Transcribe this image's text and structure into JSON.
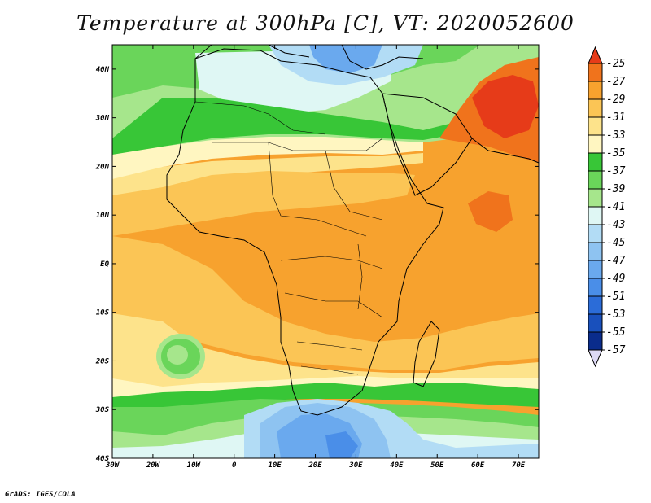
{
  "title": "Temperature at 300hPa [C], VT: 2020052600",
  "credit": "GrADS: IGES/COLA",
  "map": {
    "lon_range": [
      -30,
      75
    ],
    "lat_range": [
      -40,
      45
    ],
    "x_ticks": [
      "30W",
      "20W",
      "10W",
      "0",
      "10E",
      "20E",
      "30E",
      "40E",
      "50E",
      "60E",
      "70E"
    ],
    "x_tick_values": [
      -30,
      -20,
      -10,
      0,
      10,
      20,
      30,
      40,
      50,
      60,
      70
    ],
    "y_ticks": [
      "40N",
      "30N",
      "20N",
      "10N",
      "EQ",
      "10S",
      "20S",
      "30S",
      "40S"
    ],
    "y_tick_values": [
      40,
      30,
      20,
      10,
      0,
      -10,
      -20,
      -30,
      -40
    ]
  },
  "colorbar": {
    "labels": [
      "-25",
      "-27",
      "-29",
      "-31",
      "-33",
      "-35",
      "-37",
      "-39",
      "-41",
      "-43",
      "-45",
      "-47",
      "-49",
      "-51",
      "-53",
      "-55",
      "-57"
    ],
    "colors": [
      "#e63b19",
      "#f0731c",
      "#f7a22e",
      "#fbc555",
      "#fde38b",
      "#fff6c1",
      "#38c637",
      "#6ad55a",
      "#a6e68c",
      "#dff7f4",
      "#b2dcf5",
      "#8ec3f1",
      "#6aa9ee",
      "#4a8ee8",
      "#2b6cd8",
      "#1950bc",
      "#0a2c8c",
      "#ddd9f5"
    ]
  }
}
